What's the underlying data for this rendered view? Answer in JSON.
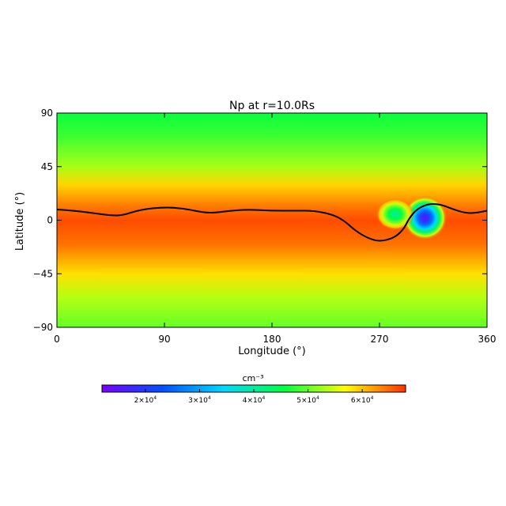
{
  "chart_data": {
    "type": "heatmap",
    "title": "Np at r=10.0Rs",
    "xlabel": "Longitude (°)",
    "ylabel": "Latitude (°)",
    "xlim": [
      0,
      360
    ],
    "ylim": [
      -90,
      90
    ],
    "x_ticks": [
      0,
      90,
      180,
      270,
      360
    ],
    "y_ticks": [
      90,
      45,
      0,
      -45,
      -90
    ],
    "x_tick_labels": [
      "0",
      "90",
      "180",
      "270",
      "360"
    ],
    "y_tick_labels": [
      "90",
      "45",
      "0",
      "−45",
      "−90"
    ],
    "colorbar": {
      "unit": "cm⁻³",
      "range": [
        12000,
        68000
      ],
      "ticks": [
        20000,
        30000,
        40000,
        50000,
        60000
      ],
      "tick_labels": [
        {
          "base": "2×10",
          "exp": "4"
        },
        {
          "base": "3×10",
          "exp": "4"
        },
        {
          "base": "4×10",
          "exp": "4"
        },
        {
          "base": "5×10",
          "exp": "4"
        },
        {
          "base": "6×10",
          "exp": "4"
        }
      ],
      "colors": [
        "#7a00ff",
        "#0050ff",
        "#00d8ff",
        "#00ff40",
        "#ffff00",
        "#ff3000"
      ]
    },
    "field": {
      "background_by_latitude": [
        {
          "lat": 90,
          "value": 46000
        },
        {
          "lat": 72,
          "value": 48000
        },
        {
          "lat": 58,
          "value": 50500
        },
        {
          "lat": 45,
          "value": 53000
        },
        {
          "lat": 30,
          "value": 59000
        },
        {
          "lat": 12,
          "value": 64000
        },
        {
          "lat": 0,
          "value": 66500
        },
        {
          "lat": -20,
          "value": 64500
        },
        {
          "lat": -45,
          "value": 58500
        },
        {
          "lat": -65,
          "value": 53500
        },
        {
          "lat": -90,
          "value": 50000
        }
      ],
      "features": [
        {
          "lon": 308,
          "lat": 2,
          "min_value": 15000
        },
        {
          "lon": 283,
          "lat": 5,
          "min_value": 40000
        }
      ]
    },
    "contour_line": [
      [
        0,
        9
      ],
      [
        15,
        8
      ],
      [
        30,
        6
      ],
      [
        45,
        4
      ],
      [
        55,
        4
      ],
      [
        70,
        9
      ],
      [
        90,
        11
      ],
      [
        105,
        10
      ],
      [
        120,
        7
      ],
      [
        130,
        6
      ],
      [
        145,
        8
      ],
      [
        160,
        9
      ],
      [
        180,
        8
      ],
      [
        200,
        8
      ],
      [
        215,
        8
      ],
      [
        230,
        5
      ],
      [
        240,
        0
      ],
      [
        250,
        -9
      ],
      [
        260,
        -15
      ],
      [
        270,
        -18
      ],
      [
        282,
        -15
      ],
      [
        290,
        -8
      ],
      [
        295,
        2
      ],
      [
        302,
        10
      ],
      [
        312,
        14
      ],
      [
        322,
        13
      ],
      [
        332,
        9
      ],
      [
        342,
        6
      ],
      [
        350,
        6
      ],
      [
        360,
        8
      ]
    ]
  }
}
